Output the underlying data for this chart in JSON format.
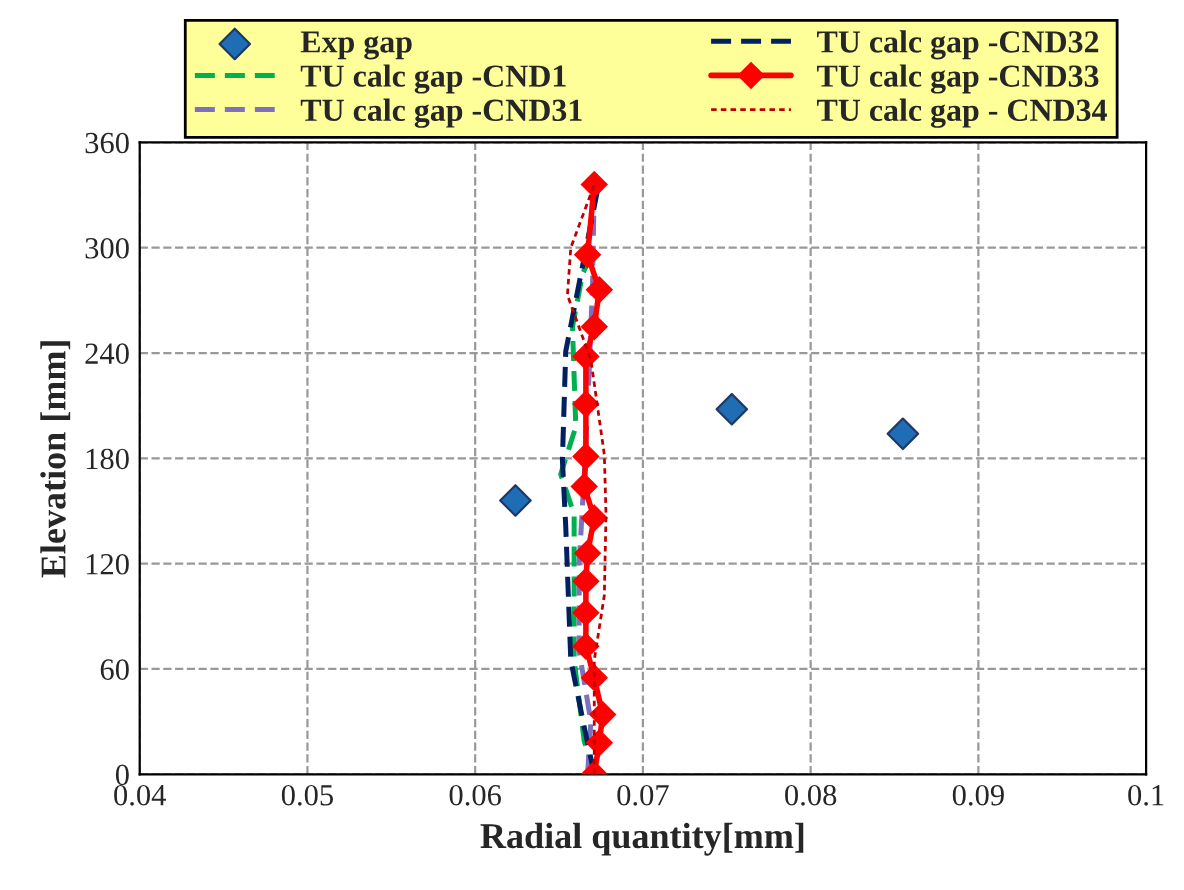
{
  "chart_data": {
    "type": "line",
    "xlabel": "Radial quantity[mm]",
    "ylabel": "Elevation [mm]",
    "xlim": [
      0.04,
      0.1
    ],
    "xticks": [
      0.04,
      0.05,
      0.06,
      0.07,
      0.08,
      0.09,
      0.1
    ],
    "ylim": [
      0,
      360
    ],
    "yticks": [
      0,
      60,
      120,
      180,
      240,
      300,
      360
    ],
    "grid": true,
    "legend": "top",
    "series": [
      {
        "name": "Exp gap",
        "type": "scatter",
        "marker": "diamond",
        "color": "#1f6db5",
        "x": [
          0.0624,
          0.0753,
          0.0855
        ],
        "values": [
          156,
          208,
          194
        ]
      },
      {
        "name": "TU calc gap -CND1",
        "color": "#00b050",
        "line_style": "dashed",
        "x": [
          0.0671,
          0.0665,
          0.0659,
          0.0659,
          0.0651,
          0.066,
          0.0658,
          0.0664,
          0.0671
        ],
        "values": [
          0,
          19,
          65,
          148,
          171,
          198,
          255,
          285,
          300
        ]
      },
      {
        "name": "TU calc gap -CND31",
        "color": "#7f6fbf",
        "line_style": "dashed",
        "x": [
          0.0667,
          0.0669,
          0.0662,
          0.0662,
          0.0665,
          0.0668,
          0.067,
          0.0671
        ],
        "values": [
          0,
          30,
          70,
          120,
          170,
          230,
          280,
          336
        ]
      },
      {
        "name": "TU calc gap -CND32",
        "color": "#002060",
        "line_style": "dashed",
        "x": [
          0.0671,
          0.0665,
          0.0657,
          0.0654,
          0.0652,
          0.0654,
          0.0674
        ],
        "values": [
          0,
          27,
          65,
          141,
          179,
          241,
          338
        ]
      },
      {
        "name": "TU calc gap -CND33",
        "color": "#ff0000",
        "line_style": "solid",
        "marker": "diamond",
        "x": [
          0.0671,
          0.0674,
          0.0676,
          0.0671,
          0.0666,
          0.0666,
          0.0666,
          0.0667,
          0.0671,
          0.0665,
          0.0666,
          0.0666,
          0.0666,
          0.0671,
          0.0674,
          0.0667,
          0.0671
        ],
        "values": [
          0,
          18,
          34,
          55,
          73,
          92,
          110,
          126,
          146,
          164,
          181,
          211,
          238,
          255,
          276,
          296,
          336
        ]
      },
      {
        "name": "TU calc gap - CND34",
        "color": "#c00000",
        "line_style": "dotted",
        "x": [
          0.0671,
          0.0671,
          0.0677,
          0.0678,
          0.0677,
          0.0669,
          0.0655,
          0.0657,
          0.0671
        ],
        "values": [
          0,
          65,
          102,
          148,
          182,
          236,
          273,
          300,
          336
        ]
      }
    ]
  }
}
